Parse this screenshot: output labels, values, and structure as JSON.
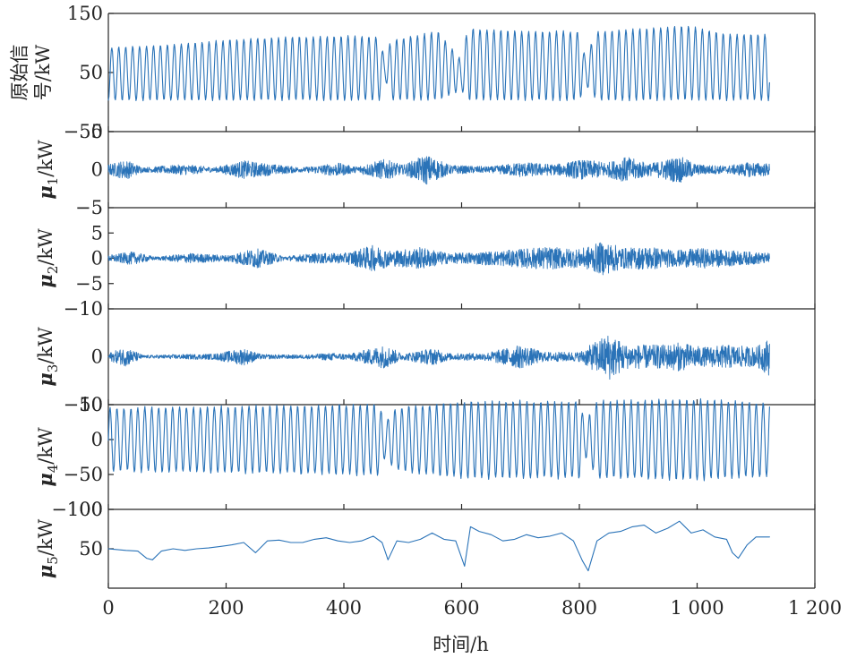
{
  "chart_data": {
    "type": "line",
    "xlabel": "时间/h",
    "xlim": [
      0,
      1200
    ],
    "xticks": [
      0,
      200,
      400,
      600,
      800,
      1000,
      1200
    ],
    "xtick_labels": [
      "0",
      "200",
      "400",
      "600",
      "800",
      "1 000",
      "1 200"
    ],
    "x_extent_of_data": [
      0,
      1123
    ],
    "series_color": "#2a73b8",
    "grid": false,
    "legend": "none",
    "subplots": [
      {
        "id": "raw",
        "ylabel_lines": [
          "原始信",
          "号/kW"
        ],
        "ylim": [
          -50,
          150
        ],
        "yticks": [
          -50,
          50,
          150
        ],
        "ytick_labels": [
          "−50",
          "50",
          "150"
        ],
        "period_h": 11.8,
        "sample_step_h": 1,
        "envelope": [
          [
            0,
            3,
            92
          ],
          [
            100,
            3,
            97
          ],
          [
            200,
            3,
            105
          ],
          [
            300,
            3,
            110
          ],
          [
            400,
            3,
            112
          ],
          [
            460,
            3,
            110
          ],
          [
            470,
            40,
            70
          ],
          [
            480,
            3,
            105
          ],
          [
            560,
            3,
            120
          ],
          [
            600,
            20,
            70
          ],
          [
            610,
            3,
            125
          ],
          [
            700,
            3,
            120
          ],
          [
            800,
            3,
            120
          ],
          [
            810,
            30,
            75
          ],
          [
            830,
            3,
            120
          ],
          [
            920,
            3,
            125
          ],
          [
            980,
            3,
            130
          ],
          [
            1050,
            3,
            115
          ],
          [
            1123,
            3,
            115
          ]
        ]
      },
      {
        "id": "u1",
        "ylabel": "μ1/kW",
        "ylim": [
          -5,
          5
        ],
        "yticks": [
          -5,
          0,
          5
        ],
        "ytick_labels": [
          "−5",
          "0",
          "5"
        ],
        "kind": "noise",
        "amplitude_profile": [
          [
            0,
            0.7
          ],
          [
            30,
            1.3
          ],
          [
            60,
            0.3
          ],
          [
            130,
            0.7
          ],
          [
            180,
            0.3
          ],
          [
            230,
            1.2
          ],
          [
            280,
            0.7
          ],
          [
            330,
            0.3
          ],
          [
            390,
            0.9
          ],
          [
            420,
            0.4
          ],
          [
            470,
            1.4
          ],
          [
            500,
            0.6
          ],
          [
            540,
            2.0
          ],
          [
            580,
            0.6
          ],
          [
            650,
            0.4
          ],
          [
            700,
            1.0
          ],
          [
            760,
            0.7
          ],
          [
            800,
            1.3
          ],
          [
            850,
            1.0
          ],
          [
            880,
            1.7
          ],
          [
            920,
            0.8
          ],
          [
            970,
            1.8
          ],
          [
            1000,
            0.7
          ],
          [
            1050,
            0.5
          ],
          [
            1090,
            1.0
          ],
          [
            1123,
            0.8
          ]
        ]
      },
      {
        "id": "u2",
        "ylabel": "μ2/kW",
        "ylim": [
          -10,
          10
        ],
        "yticks": [
          -10,
          -5,
          0,
          5
        ],
        "ytick_labels": [
          "−10",
          "−5",
          "0",
          "5"
        ],
        "kind": "noise",
        "amplitude_profile": [
          [
            0,
            0.6
          ],
          [
            40,
            1.3
          ],
          [
            80,
            0.3
          ],
          [
            140,
            1.0
          ],
          [
            200,
            0.6
          ],
          [
            250,
            2.0
          ],
          [
            300,
            0.4
          ],
          [
            350,
            1.0
          ],
          [
            400,
            1.0
          ],
          [
            450,
            2.6
          ],
          [
            480,
            1.5
          ],
          [
            530,
            2.2
          ],
          [
            580,
            1.0
          ],
          [
            620,
            1.2
          ],
          [
            680,
            1.6
          ],
          [
            740,
            2.3
          ],
          [
            800,
            1.8
          ],
          [
            840,
            3.3
          ],
          [
            880,
            2.0
          ],
          [
            920,
            2.4
          ],
          [
            960,
            1.6
          ],
          [
            1010,
            2.0
          ],
          [
            1060,
            1.5
          ],
          [
            1123,
            1.0
          ]
        ]
      },
      {
        "id": "u3",
        "ylabel": "μ3/kW",
        "ylim": [
          -10,
          10
        ],
        "yticks": [
          -10,
          0
        ],
        "ytick_labels": [
          "−10",
          "0"
        ],
        "kind": "noise",
        "amplitude_profile": [
          [
            0,
            0.8
          ],
          [
            30,
            2.0
          ],
          [
            60,
            0.3
          ],
          [
            120,
            0.5
          ],
          [
            180,
            0.6
          ],
          [
            230,
            1.8
          ],
          [
            260,
            0.5
          ],
          [
            330,
            0.4
          ],
          [
            380,
            0.8
          ],
          [
            410,
            0.6
          ],
          [
            470,
            2.5
          ],
          [
            500,
            0.6
          ],
          [
            550,
            1.8
          ],
          [
            580,
            0.7
          ],
          [
            640,
            0.8
          ],
          [
            700,
            2.5
          ],
          [
            740,
            1.0
          ],
          [
            800,
            1.0
          ],
          [
            850,
            5.0
          ],
          [
            880,
            2.5
          ],
          [
            940,
            2.5
          ],
          [
            970,
            3.0
          ],
          [
            1010,
            2.0
          ],
          [
            1050,
            2.5
          ],
          [
            1100,
            2.0
          ],
          [
            1123,
            4.0
          ]
        ]
      },
      {
        "id": "u4",
        "ylabel": "μ4/kW",
        "ylim": [
          -100,
          50
        ],
        "yticks": [
          -100,
          -50,
          0,
          50
        ],
        "ytick_labels": [
          "−100",
          "−50",
          "0",
          "50"
        ],
        "kind": "oscillation",
        "period_h": 11.8,
        "sample_step_h": 1,
        "amplitude_profile": [
          [
            0,
            45
          ],
          [
            200,
            47
          ],
          [
            400,
            50
          ],
          [
            460,
            50
          ],
          [
            470,
            25
          ],
          [
            490,
            45
          ],
          [
            600,
            55
          ],
          [
            620,
            55
          ],
          [
            800,
            55
          ],
          [
            810,
            25
          ],
          [
            830,
            55
          ],
          [
            1000,
            58
          ],
          [
            1123,
            52
          ]
        ]
      },
      {
        "id": "u5",
        "ylabel": "μ5/kW",
        "ylim": [
          0,
          100
        ],
        "yticks": [
          50,
          100
        ],
        "ytick_labels": [
          "50",
          "100"
        ],
        "kind": "trend",
        "x": [
          0,
          30,
          50,
          65,
          75,
          90,
          110,
          130,
          150,
          170,
          190,
          210,
          230,
          250,
          270,
          290,
          310,
          330,
          350,
          370,
          390,
          410,
          430,
          450,
          465,
          475,
          490,
          510,
          530,
          550,
          570,
          590,
          605,
          615,
          630,
          650,
          670,
          690,
          710,
          730,
          750,
          770,
          790,
          805,
          815,
          830,
          850,
          870,
          890,
          910,
          930,
          950,
          970,
          990,
          1010,
          1030,
          1050,
          1060,
          1070,
          1085,
          1100,
          1123
        ],
        "y": [
          50,
          48,
          47,
          38,
          36,
          47,
          50,
          48,
          50,
          51,
          53,
          55,
          58,
          45,
          60,
          61,
          58,
          58,
          62,
          64,
          60,
          58,
          60,
          66,
          58,
          36,
          60,
          58,
          62,
          70,
          62,
          60,
          28,
          78,
          72,
          68,
          60,
          62,
          68,
          64,
          66,
          70,
          60,
          35,
          22,
          60,
          70,
          72,
          78,
          80,
          70,
          76,
          85,
          70,
          74,
          65,
          62,
          45,
          38,
          55,
          65,
          65
        ]
      }
    ]
  }
}
